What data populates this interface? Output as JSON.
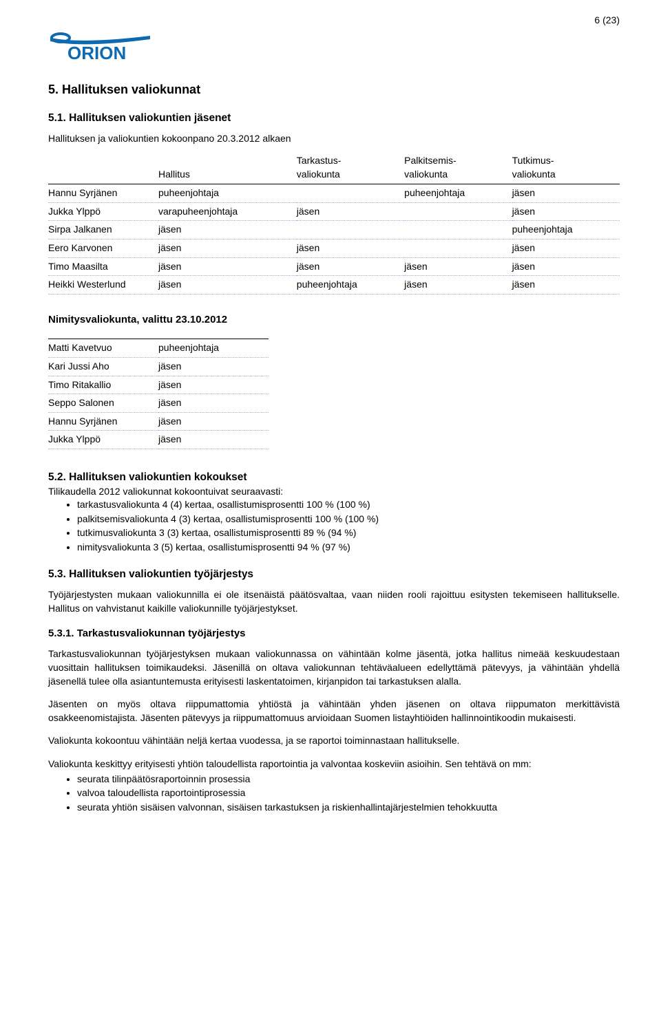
{
  "page_number": "6 (23)",
  "logo": {
    "brand_text": "ORION",
    "primary_color": "#0d6ab0"
  },
  "h_5": "5. Hallituksen valiokunnat",
  "h_5_1": "5.1. Hallituksen valiokuntien jäsenet",
  "table1_caption": "Hallituksen ja valiokuntien kokoonpano 20.3.2012 alkaen",
  "table1": {
    "columns": [
      "",
      "Hallitus",
      "Tarkastus-\nvaliokunta",
      "Palkitsemis-\nvaliokunta",
      "Tutkimus-\nvaliokunta"
    ],
    "rows": [
      [
        "Hannu Syrjänen",
        "puheenjohtaja",
        "",
        "puheenjohtaja",
        "jäsen"
      ],
      [
        "Jukka Ylppö",
        "varapuheenjohtaja",
        "jäsen",
        "",
        "jäsen"
      ],
      [
        "Sirpa Jalkanen",
        "jäsen",
        "",
        "",
        "puheenjohtaja"
      ],
      [
        "Eero Karvonen",
        "jäsen",
        "jäsen",
        "",
        "jäsen"
      ],
      [
        "Timo Maasilta",
        "jäsen",
        "jäsen",
        "jäsen",
        "jäsen"
      ],
      [
        "Heikki Westerlund",
        "jäsen",
        "puheenjohtaja",
        "jäsen",
        "jäsen"
      ]
    ],
    "dotted_color": "#9bb7d4"
  },
  "table2_caption": "Nimitysvaliokunta, valittu 23.10.2012",
  "table2": {
    "rows": [
      [
        "Matti Kavetvuo",
        "puheenjohtaja"
      ],
      [
        "Kari Jussi Aho",
        "jäsen"
      ],
      [
        "Timo Ritakallio",
        "jäsen"
      ],
      [
        "Seppo Salonen",
        "jäsen"
      ],
      [
        "Hannu Syrjänen",
        "jäsen"
      ],
      [
        "Jukka Ylppö",
        "jäsen"
      ]
    ]
  },
  "h_5_2": "5.2. Hallituksen valiokuntien kokoukset",
  "p_5_2_intro": "Tilikaudella 2012 valiokunnat kokoontuivat seuraavasti:",
  "list_5_2": [
    "tarkastusvaliokunta 4 (4) kertaa, osallistumisprosentti 100 % (100 %)",
    "palkitsemisvaliokunta 4 (3) kertaa, osallistumisprosentti 100 % (100 %)",
    "tutkimusvaliokunta 3 (3) kertaa, osallistumisprosentti 89 % (94 %)",
    "nimitysvaliokunta 3 (5) kertaa, osallistumisprosentti 94 % (97 %)"
  ],
  "h_5_3": "5.3. Hallituksen valiokuntien työjärjestys",
  "p_5_3": "Työjärjestysten mukaan valiokunnilla ei ole itsenäistä päätösvaltaa, vaan niiden rooli rajoittuu esitysten tekemiseen hallitukselle. Hallitus on vahvistanut kaikille valiokunnille työjärjestykset.",
  "h_5_3_1": "5.3.1. Tarkastusvaliokunnan työjärjestys",
  "p_5_3_1_a": "Tarkastusvaliokunnan työjärjestyksen mukaan valiokunnassa on vähintään kolme jäsentä, jotka hallitus nimeää keskuudestaan vuosittain hallituksen toimikaudeksi. Jäsenillä on oltava valiokunnan tehtäväalueen edellyttämä pätevyys, ja vähintään yhdellä jäsenellä tulee olla asiantuntemusta erityisesti laskentatoimen, kirjanpidon tai tarkastuksen alalla.",
  "p_5_3_1_b": "Jäsenten on myös oltava riippumattomia yhtiöstä ja vähintään yhden jäsenen on oltava riippumaton merkittävistä osakkeenomistajista. Jäsenten pätevyys ja riippumattomuus arvioidaan Suomen listayhtiöiden hallinnointikoodin mukaisesti.",
  "p_5_3_1_c": "Valiokunta kokoontuu vähintään neljä kertaa vuodessa, ja se raportoi toiminnastaan hallitukselle.",
  "p_5_3_1_d": "Valiokunta keskittyy erityisesti yhtiön taloudellista raportointia ja valvontaa koskeviin asioihin. Sen tehtävä on mm:",
  "list_5_3_1": [
    "seurata tilinpäätösraportoinnin prosessia",
    "valvoa taloudellista raportointiprosessia",
    "seurata yhtiön sisäisen valvonnan, sisäisen tarkastuksen ja riskienhallintajärjestelmien tehokkuutta"
  ]
}
